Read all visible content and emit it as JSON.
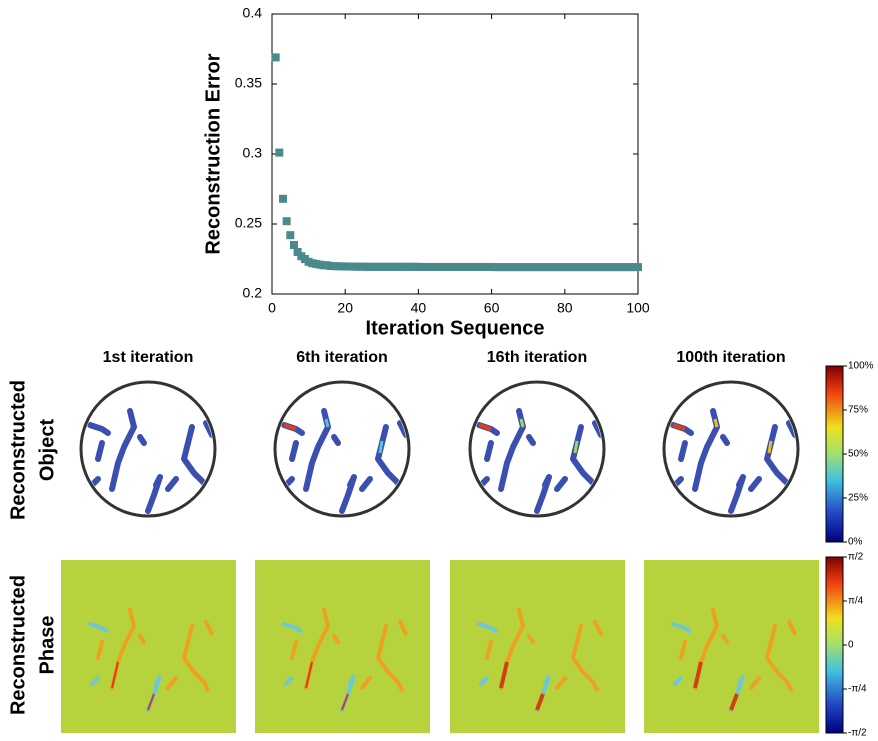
{
  "chart_data": {
    "type": "scatter",
    "xlabel": "Iteration Sequence",
    "ylabel": "Reconstruction Error",
    "x": [
      1,
      2,
      3,
      4,
      5,
      6,
      7,
      8,
      9,
      10,
      11,
      12,
      13,
      14,
      15,
      16,
      17,
      18,
      19,
      20,
      21,
      22,
      23,
      24,
      25,
      26,
      27,
      28,
      29,
      30,
      31,
      32,
      33,
      34,
      35,
      36,
      37,
      38,
      39,
      40,
      41,
      42,
      43,
      44,
      45,
      46,
      47,
      48,
      49,
      50,
      51,
      52,
      53,
      54,
      55,
      56,
      57,
      58,
      59,
      60,
      61,
      62,
      63,
      64,
      65,
      66,
      67,
      68,
      69,
      70,
      71,
      72,
      73,
      74,
      75,
      76,
      77,
      78,
      79,
      80,
      81,
      82,
      83,
      84,
      85,
      86,
      87,
      88,
      89,
      90,
      91,
      92,
      93,
      94,
      95,
      96,
      97,
      98,
      99,
      100
    ],
    "series": [
      {
        "color": "#4a8a8a",
        "values": [
          0.369,
          0.301,
          0.268,
          0.252,
          0.242,
          0.235,
          0.23,
          0.227,
          0.225,
          0.223,
          0.222,
          0.2215,
          0.221,
          0.2205,
          0.2205,
          0.22,
          0.2199,
          0.2198,
          0.2197,
          0.2197,
          0.2196,
          0.2196,
          0.2195,
          0.2195,
          0.2195,
          0.2194,
          0.2194,
          0.2194,
          0.2194,
          0.2194,
          0.2194,
          0.2194,
          0.2194,
          0.2194,
          0.2194,
          0.2194,
          0.2194,
          0.2194,
          0.2194,
          0.2194,
          0.2193,
          0.2193,
          0.2193,
          0.2193,
          0.2193,
          0.2193,
          0.2193,
          0.2193,
          0.2193,
          0.2193,
          0.2193,
          0.2193,
          0.2193,
          0.2193,
          0.2193,
          0.2193,
          0.2193,
          0.2193,
          0.2193,
          0.2193,
          0.2192,
          0.2192,
          0.2192,
          0.2192,
          0.2192,
          0.2192,
          0.2192,
          0.2192,
          0.2192,
          0.2192,
          0.2192,
          0.2192,
          0.2192,
          0.2192,
          0.2192,
          0.2192,
          0.2192,
          0.2192,
          0.2192,
          0.2192,
          0.2192,
          0.2192,
          0.2192,
          0.2192,
          0.2192,
          0.2192,
          0.2192,
          0.2192,
          0.2192,
          0.2192,
          0.2192,
          0.2192,
          0.2192,
          0.2192,
          0.2192,
          0.2192,
          0.2192,
          0.2192,
          0.2192,
          0.2192
        ]
      }
    ],
    "xlim": [
      0,
      100
    ],
    "xticks": [
      0,
      20,
      40,
      60,
      80,
      100
    ],
    "ylim": [
      0.2,
      0.4
    ],
    "yticks": [
      0.2,
      0.25,
      0.3,
      0.35,
      0.4
    ],
    "grid": false
  },
  "panels": {
    "columns": [
      "1st iteration",
      "6th iteration",
      "16th iteration",
      "100th iteration"
    ],
    "rows": [
      [
        "Reconstructed",
        "Object"
      ],
      [
        "Reconstructed",
        "Phase"
      ]
    ],
    "colorbars": [
      {
        "lim": [
          0,
          100
        ],
        "ticks": [
          {
            "value": 100,
            "label": "100%"
          },
          {
            "value": 75,
            "label": "75%"
          },
          {
            "value": 50,
            "label": "50%"
          },
          {
            "value": 25,
            "label": "25%"
          },
          {
            "value": 0,
            "label": "0%"
          }
        ]
      },
      {
        "lim": [
          -1.5708,
          1.5708
        ],
        "ticks": [
          {
            "value": 1.5708,
            "label": "π/2"
          },
          {
            "value": 0.7854,
            "label": "π/4"
          },
          {
            "value": 0,
            "label": "0"
          },
          {
            "value": -0.7854,
            "label": "-π/4"
          },
          {
            "value": -1.5708,
            "label": "-π/2"
          }
        ]
      }
    ]
  }
}
